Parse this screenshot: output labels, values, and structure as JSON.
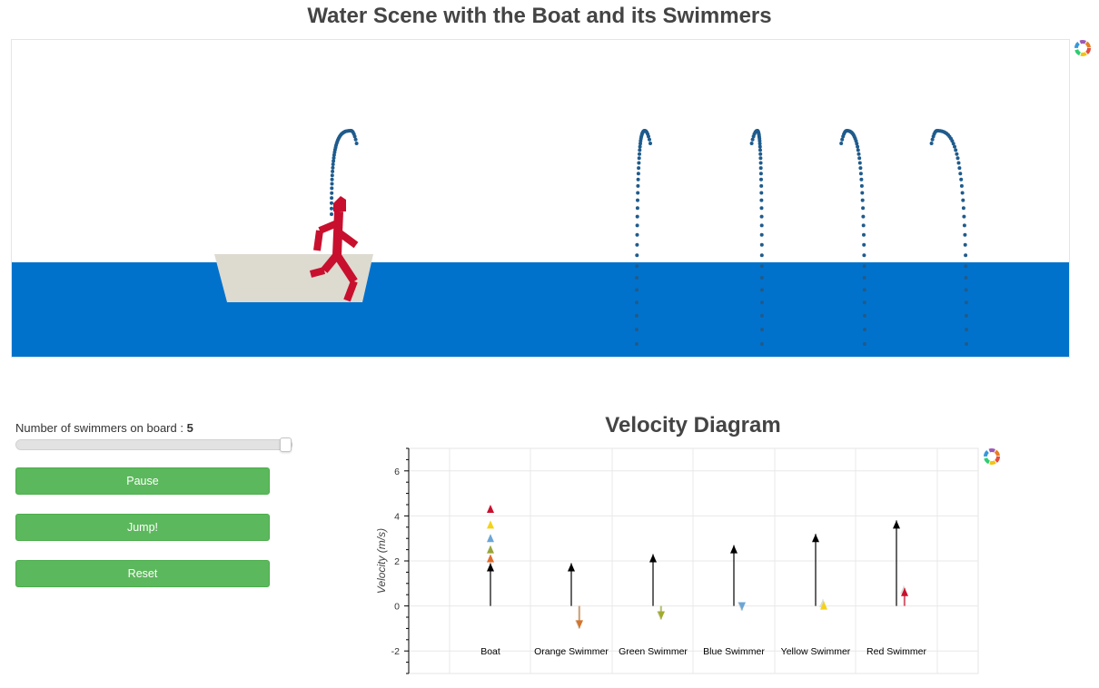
{
  "scene": {
    "title": "Water Scene with the Boat and its Swimmers",
    "water_color": "#0072cc",
    "boat_color": "#dddad0",
    "swimmer_color": "#c8102e",
    "trajectory_color": "#1f5b8c"
  },
  "controls": {
    "slider_label": "Number of swimmers on board :",
    "slider_value": "5",
    "slider_fraction": 1.0,
    "pause_label": "Pause",
    "jump_label": "Jump!",
    "reset_label": "Reset"
  },
  "velocity": {
    "title": "Velocity Diagram"
  },
  "chart_data": {
    "type": "bar",
    "title": "Velocity Diagram",
    "ylabel": "Velocity (m/s)",
    "xlabel": "",
    "ylim": [
      -3,
      7
    ],
    "yticks": [
      "6",
      "4",
      "2",
      "0",
      "-2"
    ],
    "categories": [
      "Boat",
      "Orange Swimmer",
      "Green Swimmer",
      "Blue Swimmer",
      "Yellow Swimmer",
      "Red Swimmer"
    ],
    "series": [
      {
        "values": [
          1.9,
          1.9,
          2.3,
          2.7,
          3.2,
          3.8
        ],
        "color": "#000000"
      },
      {
        "values": [
          null,
          -1.0,
          -0.6,
          -0.2,
          0.3,
          0.9
        ],
        "color": "#dcdcd6"
      },
      {
        "values": [
          null,
          -1.0,
          -0.6,
          -0.2,
          0.2,
          0.8
        ],
        "color": "multi"
      }
    ],
    "boat_markers": [
      {
        "value": 2.3,
        "color": "#dd6b2c"
      },
      {
        "value": 2.7,
        "color": "#98a63a"
      },
      {
        "value": 3.2,
        "color": "#6ca5d6"
      },
      {
        "value": 3.8,
        "color": "#f5d21a"
      },
      {
        "value": 4.5,
        "color": "#c8102e"
      }
    ],
    "swimmer_colors": [
      "#d2752e",
      "#a0ac2c",
      "#6ca5d6",
      "#f5d21a",
      "#c8102e"
    ]
  }
}
